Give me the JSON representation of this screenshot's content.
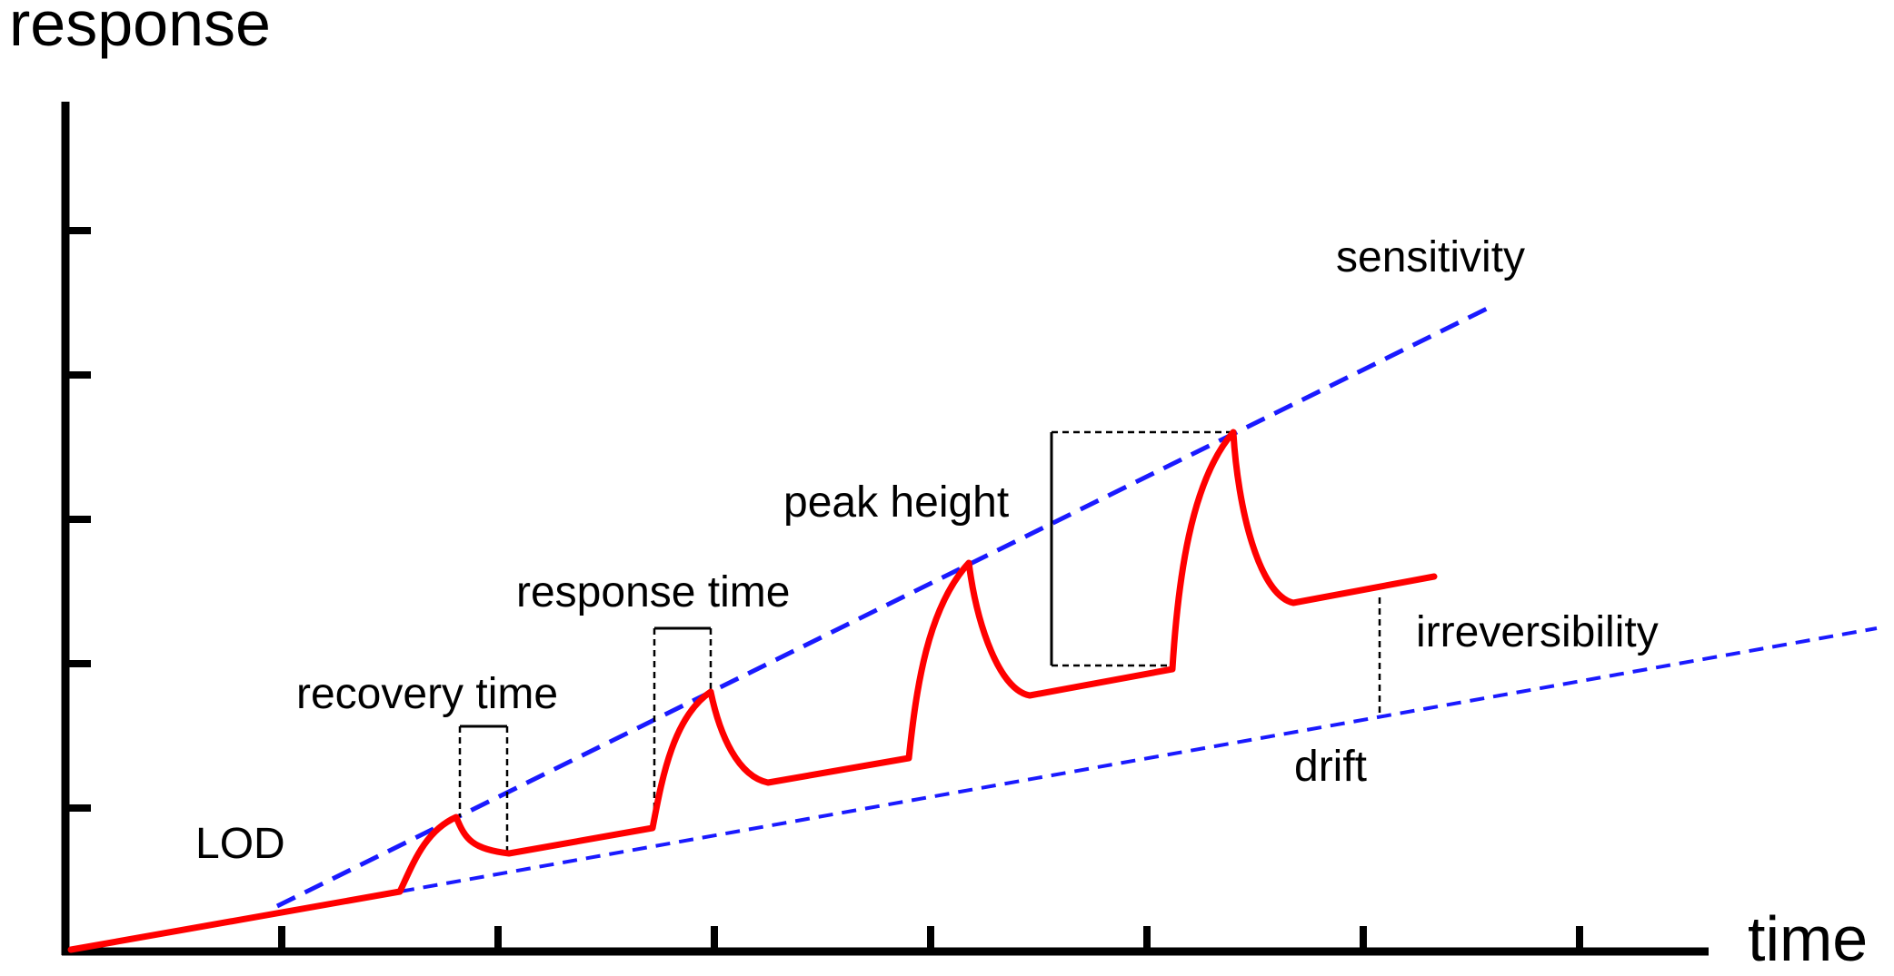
{
  "axes": {
    "y_label": "response",
    "x_label": "time"
  },
  "annotations": {
    "sensitivity": "sensitivity",
    "peak_height": "peak height",
    "response_time": "response time",
    "recovery_time": "recovery time",
    "irreversibility": "irreversibility",
    "drift": "drift",
    "lod": "LOD"
  },
  "colors": {
    "signal": "#ff0000",
    "guide": "#1a1aff",
    "axis": "#000000",
    "marker": "#000000"
  }
}
